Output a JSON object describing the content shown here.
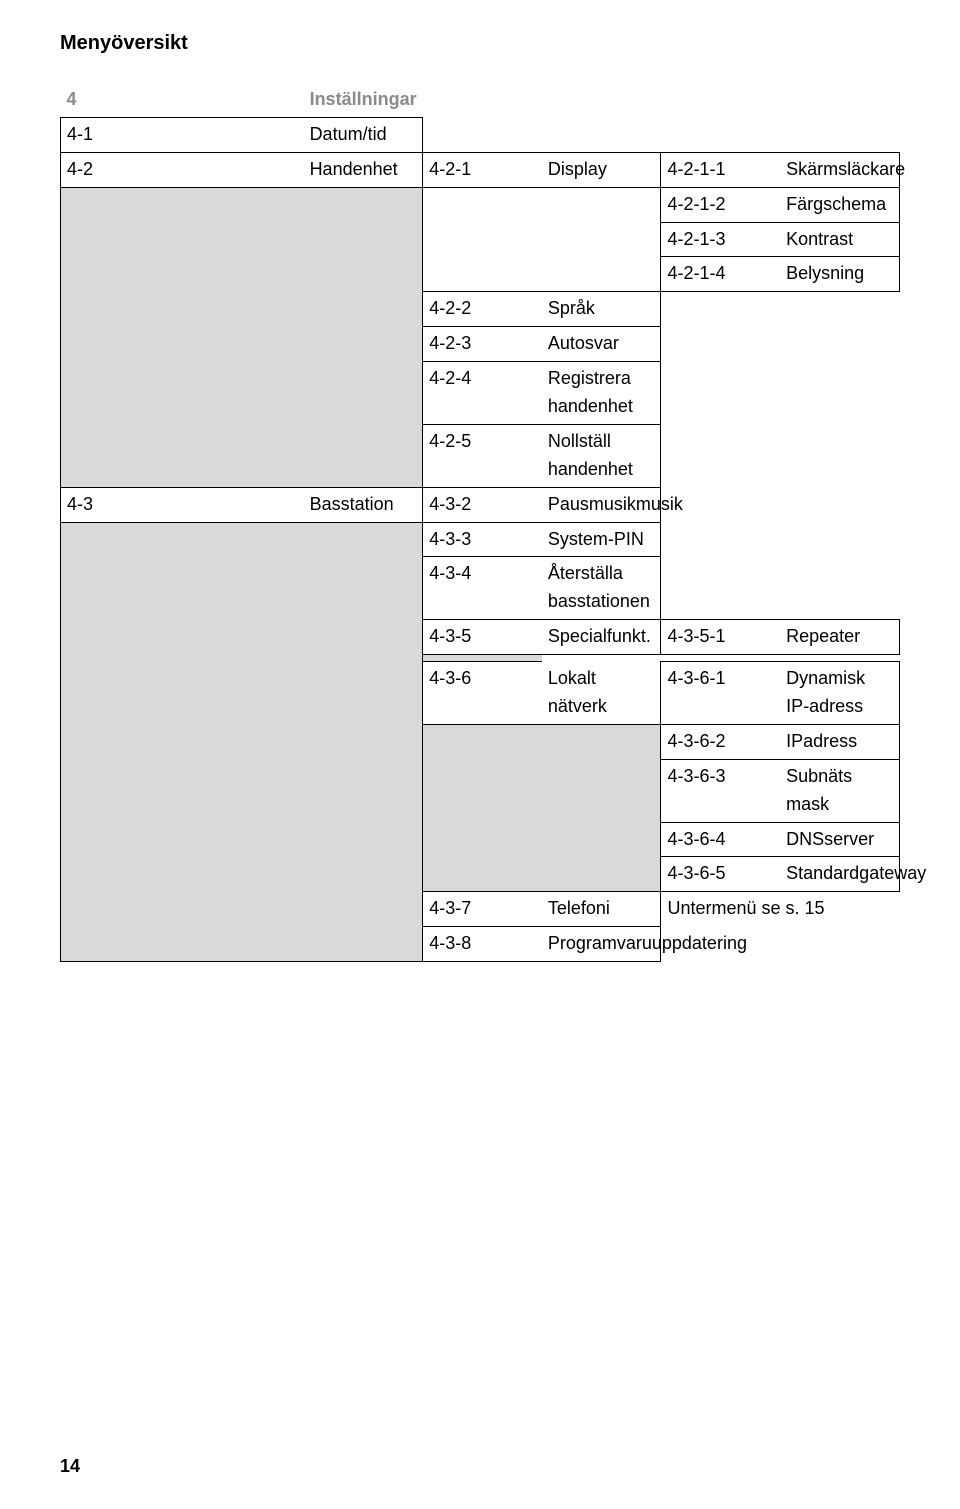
{
  "page_title": "Menyöversikt",
  "page_number": "14",
  "colors": {
    "shaded_bg": "#d9d9d9",
    "border": "#000000",
    "background": "#ffffff",
    "text": "#000000",
    "section_text": "#8a8a8a"
  },
  "fonts": {
    "title_size_pt": 15,
    "title_weight": 700,
    "body_size_pt": 14,
    "body_weight": 400,
    "section_weight": 700
  },
  "section": {
    "num": "4",
    "name": "Inställningar"
  },
  "rows": {
    "r1": {
      "c1_num": "4-1",
      "c1_name": "Datum/tid"
    },
    "r2": {
      "c1_num": "4-2",
      "c1_name": "Handenhet",
      "c2_num": "4-2-1",
      "c2_name": "Display",
      "c3_num": "4-2-1-1",
      "c3_name": "Skärmsläckare"
    },
    "r3": {
      "c3_num": "4-2-1-2",
      "c3_name": "Färgschema"
    },
    "r4": {
      "c3_num": "4-2-1-3",
      "c3_name": "Kontrast"
    },
    "r5": {
      "c3_num": "4-2-1-4",
      "c3_name": "Belysning"
    },
    "r6": {
      "c2_num": "4-2-2",
      "c2_name": "Språk"
    },
    "r7": {
      "c2_num": "4-2-3",
      "c2_name": "Autosvar"
    },
    "r8": {
      "c2_num": "4-2-4",
      "c2_name": "Registrera handenhet"
    },
    "r9": {
      "c2_num": "4-2-5",
      "c2_name": "Nollställ handenhet"
    },
    "r10": {
      "c1_num": "4-3",
      "c1_name": "Basstation",
      "c2_num": "4-3-2",
      "c2_name": "Pausmusikmusik"
    },
    "r11": {
      "c2_num": "4-3-3",
      "c2_name": "System-PIN"
    },
    "r12": {
      "c2_num": "4-3-4",
      "c2_name": "Återställa basstationen"
    },
    "r13": {
      "c2_num": "4-3-5",
      "c2_name": "Specialfunkt.",
      "c3_num": "4-3-5-1",
      "c3_name": "Repeater"
    },
    "r14": {
      "c2_num": "4-3-6",
      "c2_name": "Lokalt nätverk",
      "c3_num": "4-3-6-1",
      "c3_name": "Dynamisk IP-adress"
    },
    "r15": {
      "c3_num": "4-3-6-2",
      "c3_name": "IPadress"
    },
    "r16": {
      "c3_num": "4-3-6-3",
      "c3_name": "Subnäts mask"
    },
    "r17": {
      "c3_num": "4-3-6-4",
      "c3_name": "DNSserver"
    },
    "r18": {
      "c3_num": "4-3-6-5",
      "c3_name": "Standardgateway"
    },
    "r19": {
      "c2_num": "4-3-7",
      "c2_name": "Telefoni",
      "c3_note": "Untermenü se s. 15"
    },
    "r20": {
      "c2_num": "4-3-8",
      "c2_name": "Programvaruuppdatering"
    }
  }
}
